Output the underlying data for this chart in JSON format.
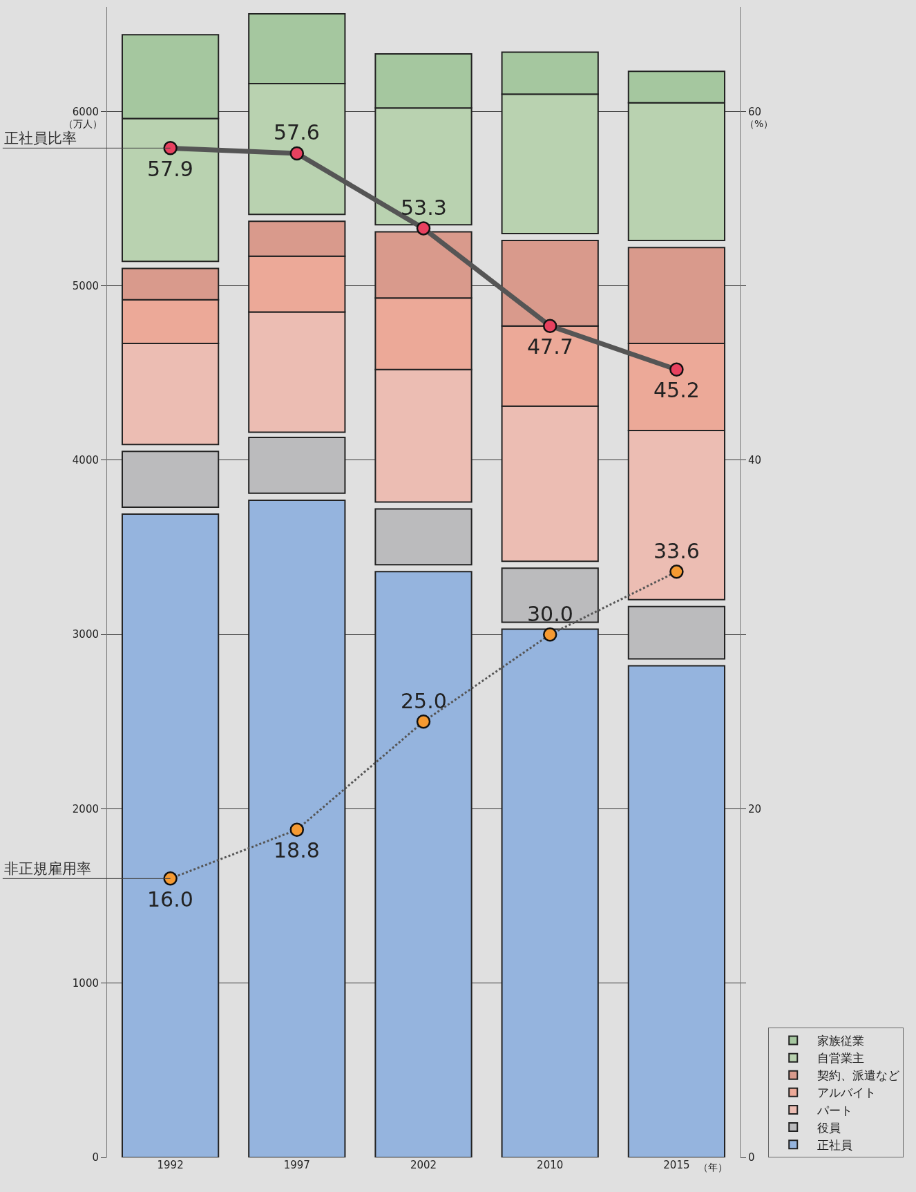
{
  "chart_data": {
    "type": "bar",
    "categories": [
      "1992",
      "1997",
      "2002",
      "2010",
      "2015"
    ],
    "series": [
      {
        "name": "正社員",
        "color": "#95b4de",
        "base": [
          0,
          0,
          0,
          0,
          0
        ],
        "values": [
          3690,
          3770,
          3360,
          3030,
          2820
        ]
      },
      {
        "name": "役員",
        "color": "#bbbbbd",
        "base": [
          3730,
          3810,
          3400,
          3070,
          2860
        ],
        "values": [
          320,
          320,
          320,
          310,
          300
        ]
      },
      {
        "name": "パート",
        "color": "#ecbdb3",
        "base": [
          4090,
          4160,
          3760,
          3420,
          3200
        ],
        "values": [
          580,
          690,
          760,
          890,
          970
        ]
      },
      {
        "name": "アルバイト",
        "color": "#eca998",
        "base": [
          4670,
          4850,
          4520,
          4310,
          4170
        ],
        "values": [
          250,
          320,
          410,
          460,
          500
        ]
      },
      {
        "name": "契約、派遣など",
        "color": "#d99a8c",
        "base": [
          4920,
          5170,
          4930,
          4770,
          4670
        ],
        "values": [
          180,
          200,
          380,
          490,
          550
        ]
      },
      {
        "name": "自営業主",
        "color": "#b9d2b0",
        "base": [
          5140,
          5410,
          5350,
          5300,
          5260
        ],
        "values": [
          820,
          750,
          670,
          800,
          790
        ]
      },
      {
        "name": "家族従業",
        "color": "#a5c79f",
        "base": [
          5960,
          6160,
          6020,
          6100,
          6050
        ],
        "values": [
          480,
          400,
          310,
          240,
          180
        ]
      },
      {
        "name": "正社員比率",
        "type": "line",
        "axis": "y2",
        "color": "#e8415f",
        "line_style": "solid",
        "marker": "circle",
        "values": [
          57.9,
          57.6,
          53.3,
          47.7,
          45.2
        ],
        "value_labels": [
          "57.9",
          "57.6",
          "53.3",
          "47.7",
          "45.2"
        ]
      },
      {
        "name": "非正規雇用率",
        "type": "line",
        "axis": "y2",
        "color": "#f59a32",
        "line_style": "dotted",
        "marker": "circle",
        "values": [
          16.0,
          18.8,
          25.0,
          30.0,
          33.6
        ],
        "value_labels": [
          "16.0",
          "18.8",
          "25.0",
          "30.0",
          "33.6"
        ]
      }
    ],
    "ylim": [
      0,
      6600
    ],
    "yticks": [
      0,
      1000,
      2000,
      3000,
      4000,
      5000,
      6000
    ],
    "y2lim": [
      0,
      66
    ],
    "y2ticks": [
      0,
      {
        "value": 10,
        "label": null
      },
      20,
      {
        "value": 30,
        "label": null
      },
      40,
      {
        "value": 50,
        "label": null
      },
      60
    ],
    "annotations": [
      "（万人）",
      "（%）",
      "（年）"
    ],
    "grid": "y",
    "legend": "bottom right"
  }
}
